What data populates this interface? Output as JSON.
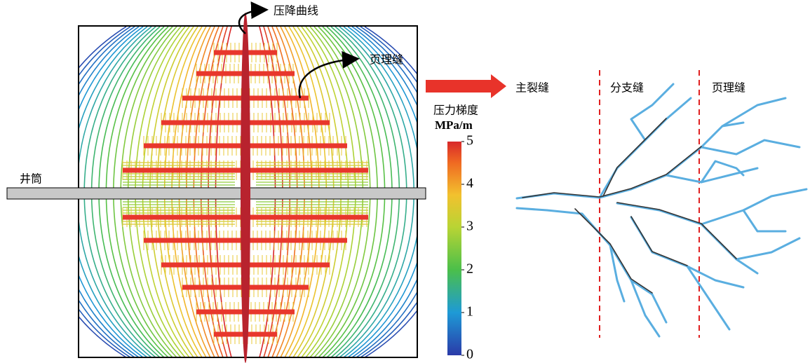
{
  "left_panel": {
    "pressure_curve": "压降曲线",
    "bedding_fracture": "页理缝",
    "wellbore": "井筒"
  },
  "colorbar": {
    "title": "压力梯度",
    "unit": "MPa/m",
    "range": [
      0,
      5
    ],
    "ticks": [
      0,
      1,
      2,
      3,
      4,
      5
    ]
  },
  "right_panel": {
    "zones": [
      "主裂缝",
      "分支缝",
      "页理缝"
    ]
  }
}
